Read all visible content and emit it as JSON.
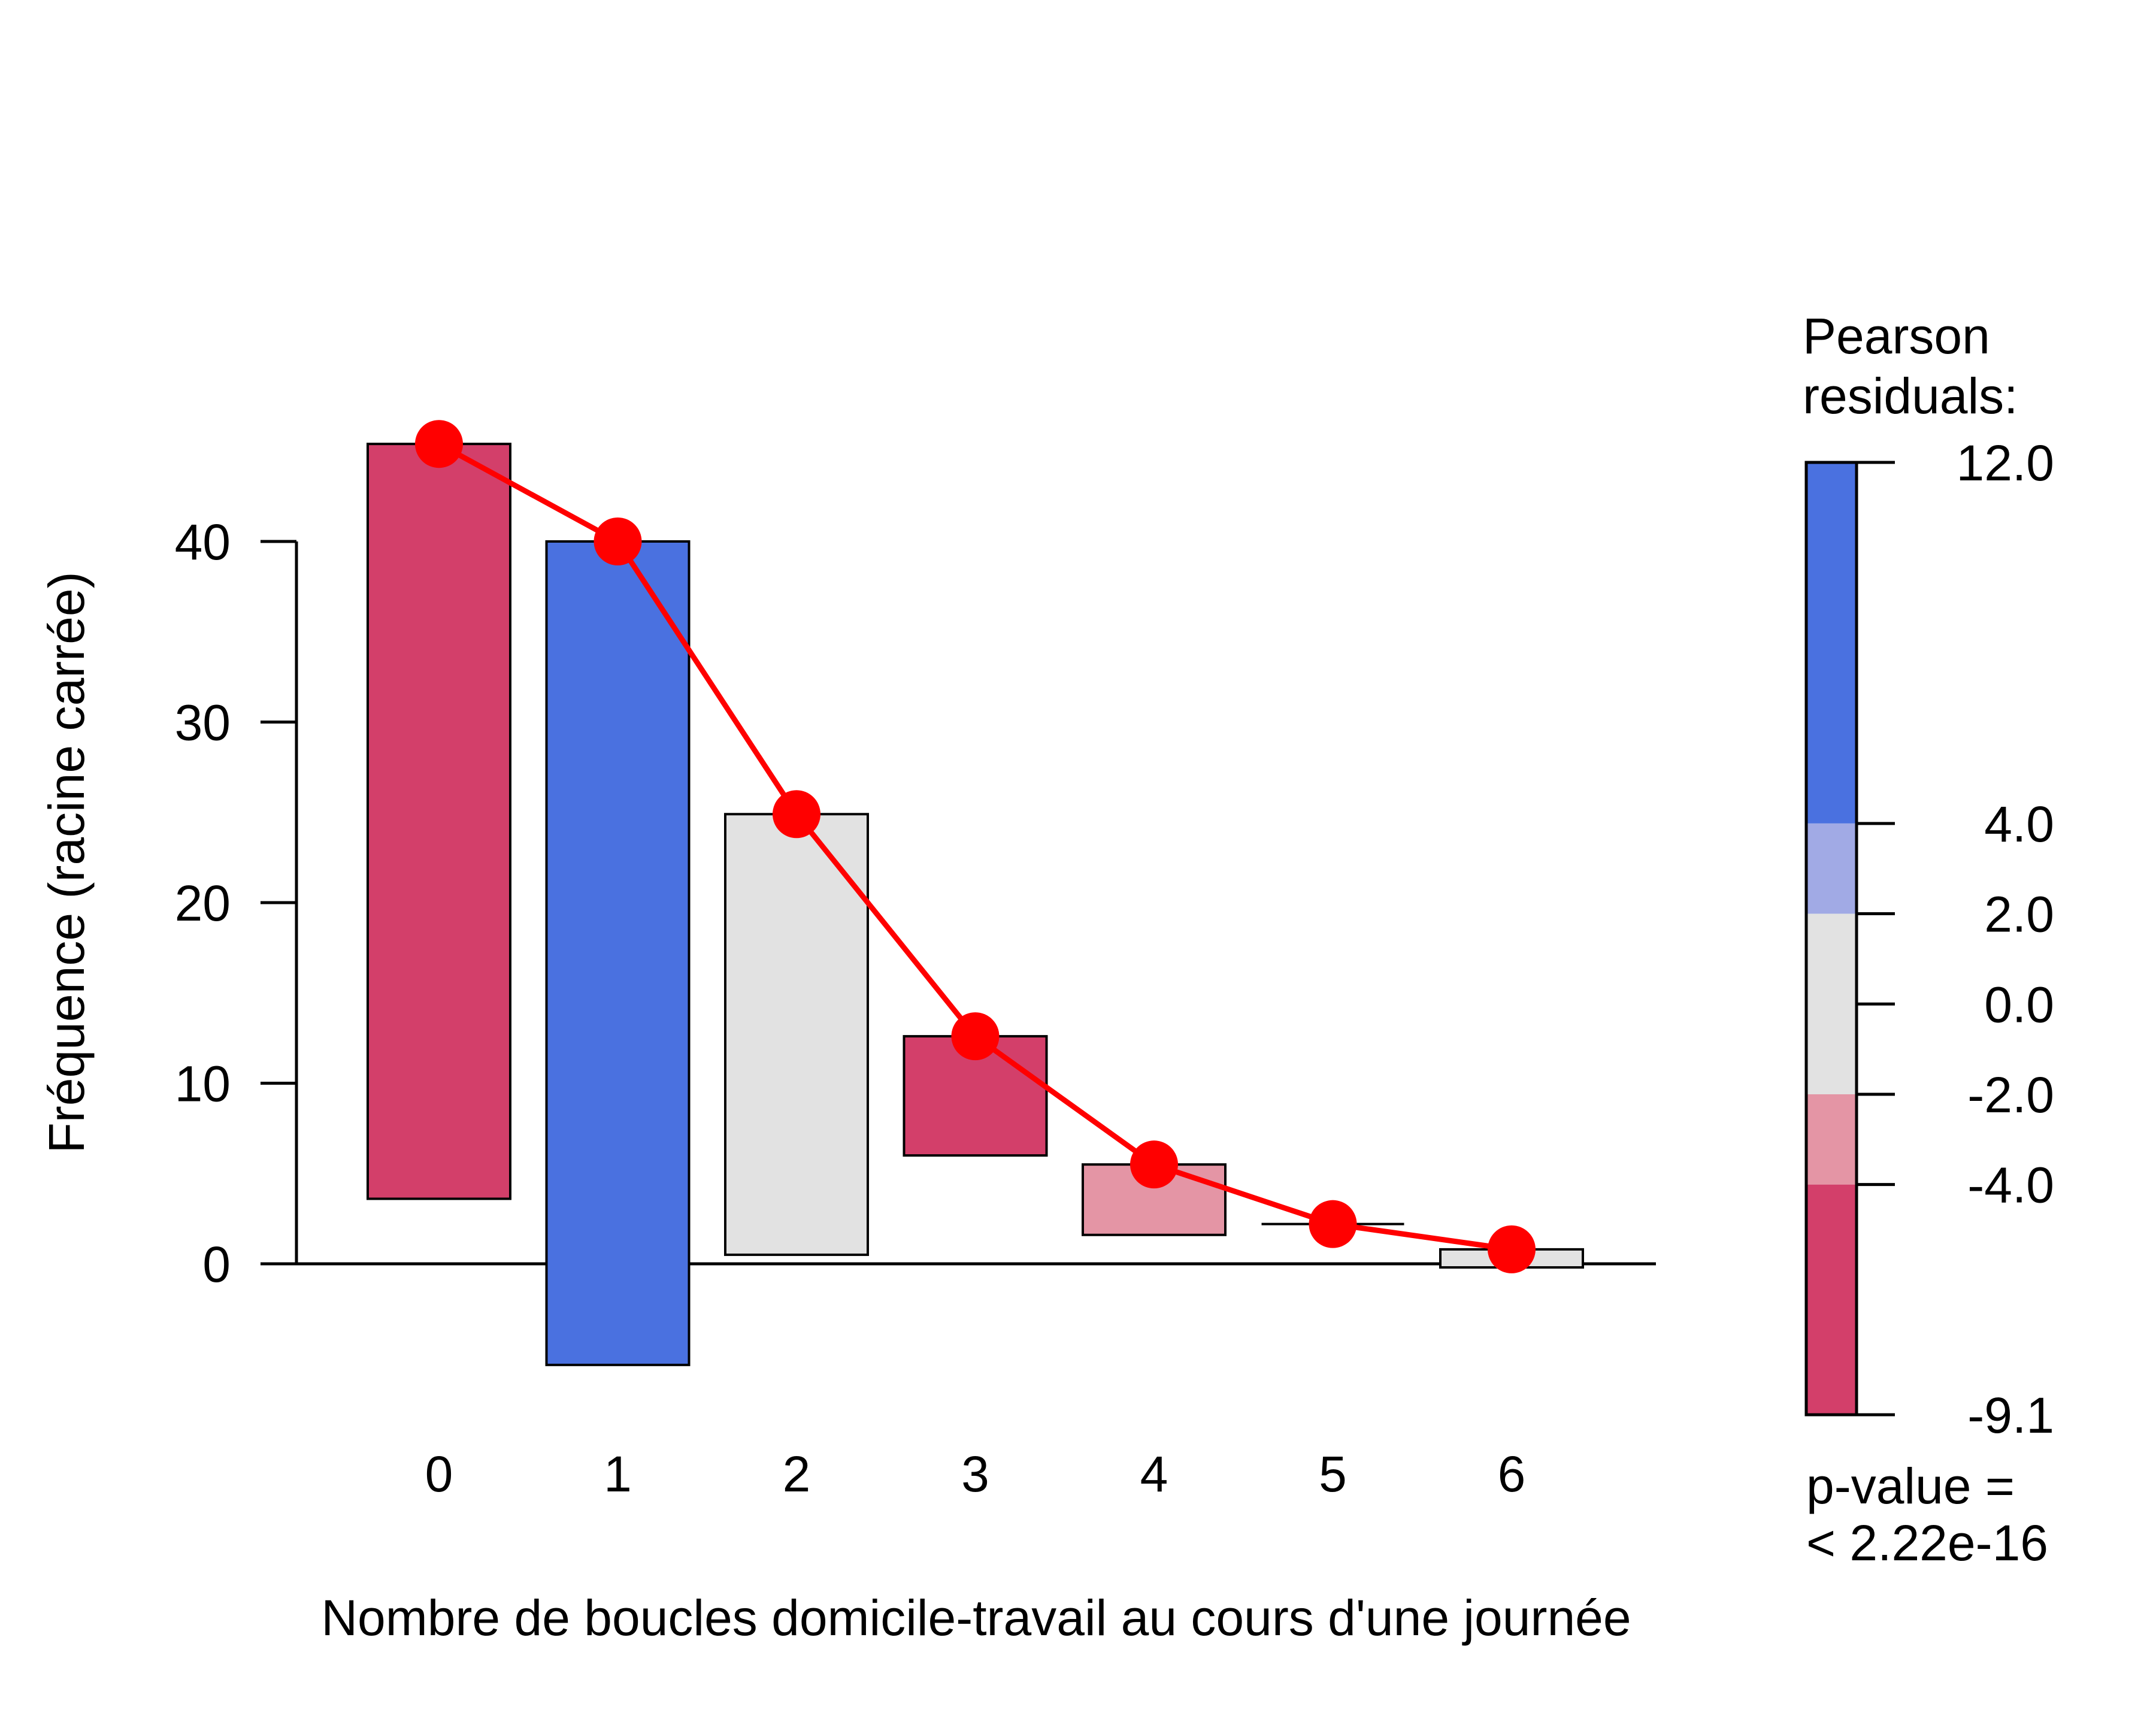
{
  "chart_data": {
    "type": "bar",
    "subtype": "hanging rootogram",
    "xlabel": "Nombre de boucles domicile-travail au cours d'une journée",
    "ylabel": "Fréquence (racine carrée)",
    "categories": [
      "0",
      "1",
      "2",
      "3",
      "4",
      "5",
      "6"
    ],
    "expected_sqrt": [
      45.4,
      40.0,
      24.9,
      12.6,
      5.5,
      2.2,
      0.8
    ],
    "bar_bottom": [
      3.6,
      -5.6,
      0.5,
      6.0,
      1.6,
      2.2,
      -0.2
    ],
    "residual_class": [
      "lt-4",
      "gt4",
      "mid",
      "lt-4",
      "neg2to4",
      "mid",
      "mid"
    ],
    "yticks": [
      "0",
      "10",
      "20",
      "30",
      "40"
    ],
    "ytick_values": [
      0,
      10,
      20,
      30,
      40
    ],
    "ylim": [
      -8.5,
      64
    ],
    "line_color": "#ff0000",
    "colors": {
      "gt4": "#4a71e0",
      "pos2to4": "#a1aae5",
      "mid": "#e2e2e2",
      "neg2to4": "#e495a5",
      "lt-4": "#d33f6a"
    }
  },
  "legend": {
    "title_line1": "Pearson",
    "title_line2": "residuals:",
    "tick_labels": [
      "12.0",
      "4.0",
      "2.0",
      "0.0",
      "-2.0",
      "-4.0",
      "-9.1"
    ],
    "tick_values": [
      12.0,
      4.0,
      2.0,
      0.0,
      -2.0,
      -4.0,
      -9.1
    ],
    "pvalue_line1": "p-value =",
    "pvalue_line2": "< 2.22e-16"
  }
}
